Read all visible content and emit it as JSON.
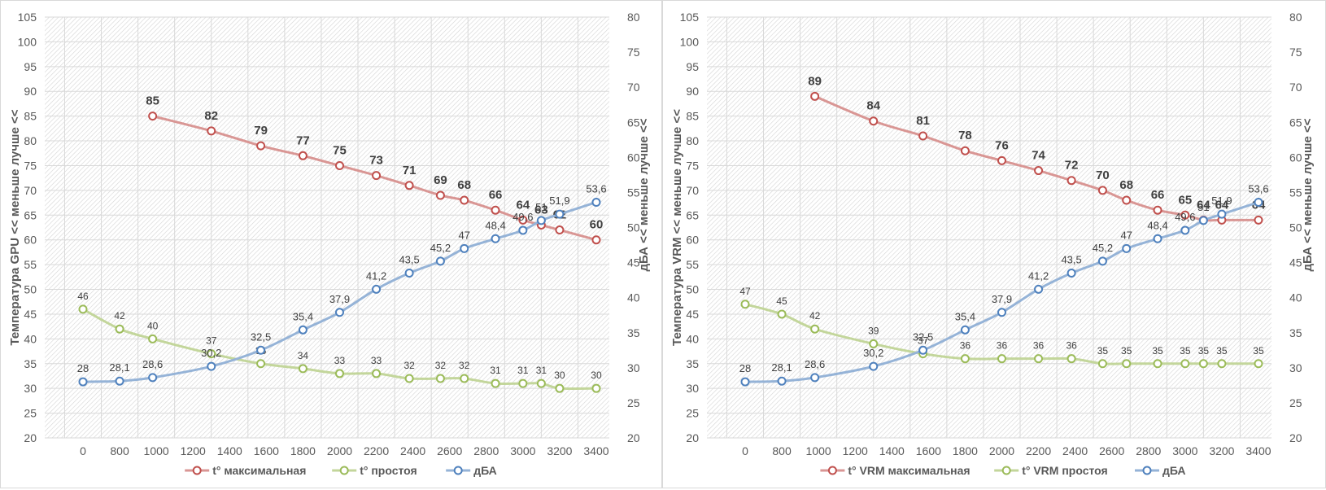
{
  "chart_data": [
    {
      "type": "line",
      "id": "gpu",
      "xlabel": "",
      "categories": [
        "0",
        "800",
        "1000",
        "1200",
        "1400",
        "1600",
        "1800",
        "2000",
        "2200",
        "2400",
        "2600",
        "2800",
        "3000",
        "3200",
        "3400"
      ],
      "ylabel": "Температура GPU << меньше лучше <<",
      "ylim": [
        20,
        105
      ],
      "yticks": [
        20,
        25,
        30,
        35,
        40,
        45,
        50,
        55,
        60,
        65,
        70,
        75,
        80,
        85,
        90,
        95,
        100,
        105
      ],
      "y2label": "дБА <<  меньше лучше <<",
      "y2lim": [
        20,
        80
      ],
      "y2ticks": [
        20,
        25,
        30,
        35,
        40,
        45,
        50,
        55,
        60,
        65,
        70,
        75,
        80
      ],
      "grid": true,
      "legend_position": "bottom",
      "series": [
        {
          "name": "t° максимальная",
          "color": "#d99694",
          "marker_color": "#c0504d",
          "axis": "primary",
          "label_style": "bold",
          "x": [
            980,
            1300,
            1570,
            1800,
            2000,
            2200,
            2380,
            2550,
            2680,
            2850,
            3000,
            3100,
            3200,
            3400
          ],
          "values": [
            85,
            82,
            79,
            77,
            75,
            73,
            71,
            69,
            68,
            66,
            64,
            63,
            62,
            60
          ],
          "labels": [
            "85",
            "82",
            "79",
            "77",
            "75",
            "73",
            "71",
            "69",
            "68",
            "66",
            "64",
            "63",
            "62",
            "60"
          ]
        },
        {
          "name": "t° простоя",
          "color": "#c3d69b",
          "marker_color": "#9bbb59",
          "axis": "primary",
          "label_style": "small",
          "x": [
            0,
            800,
            980,
            1300,
            1570,
            1800,
            2000,
            2200,
            2380,
            2550,
            2680,
            2850,
            3000,
            3100,
            3200,
            3400
          ],
          "values": [
            46,
            42,
            40,
            37,
            35,
            34,
            33,
            33,
            32,
            32,
            32,
            31,
            31,
            31,
            30,
            30
          ],
          "labels": [
            "46",
            "42",
            "40",
            "37",
            "35",
            "34",
            "33",
            "33",
            "32",
            "32",
            "32",
            "31",
            "31",
            "31",
            "30",
            "30"
          ]
        },
        {
          "name": "дБА",
          "color": "#95b3d7",
          "marker_color": "#4f81bd",
          "axis": "secondary",
          "label_style": "normal",
          "x": [
            0,
            800,
            980,
            1300,
            1570,
            1800,
            2000,
            2200,
            2380,
            2550,
            2680,
            2850,
            3000,
            3100,
            3200,
            3400
          ],
          "values": [
            28,
            28.1,
            28.6,
            30.2,
            32.5,
            35.4,
            37.9,
            41.2,
            43.5,
            45.2,
            47,
            48.4,
            49.6,
            51,
            51.9,
            53.6
          ],
          "labels": [
            "28",
            "28,1",
            "28,6",
            "30,2",
            "32,5",
            "35,4",
            "37,9",
            "41,2",
            "43,5",
            "45,2",
            "47",
            "48,4",
            "49,6",
            "51",
            "51,9",
            "53,6"
          ]
        }
      ]
    },
    {
      "type": "line",
      "id": "vrm",
      "xlabel": "",
      "categories": [
        "0",
        "800",
        "1000",
        "1200",
        "1400",
        "1600",
        "1800",
        "2000",
        "2200",
        "2400",
        "2600",
        "2800",
        "3000",
        "3200",
        "3400"
      ],
      "ylabel": "Температура VRM << меньше лучше <<",
      "ylim": [
        20,
        105
      ],
      "yticks": [
        20,
        25,
        30,
        35,
        40,
        45,
        50,
        55,
        60,
        65,
        70,
        75,
        80,
        85,
        90,
        95,
        100,
        105
      ],
      "y2label": "дБА <<  меньше лучше <<",
      "y2lim": [
        20,
        80
      ],
      "y2ticks": [
        20,
        25,
        30,
        35,
        40,
        45,
        50,
        55,
        60,
        65,
        70,
        75,
        80
      ],
      "grid": true,
      "legend_position": "bottom",
      "series": [
        {
          "name": "t° VRM максимальная",
          "color": "#d99694",
          "marker_color": "#c0504d",
          "axis": "primary",
          "label_style": "bold",
          "x": [
            980,
            1300,
            1570,
            1800,
            2000,
            2200,
            2380,
            2550,
            2680,
            2850,
            3000,
            3100,
            3200,
            3400
          ],
          "values": [
            89,
            84,
            81,
            78,
            76,
            74,
            72,
            70,
            68,
            66,
            65,
            64,
            64,
            64
          ],
          "labels": [
            "89",
            "84",
            "81",
            "78",
            "76",
            "74",
            "72",
            "70",
            "68",
            "66",
            "65",
            "64",
            "64",
            "64"
          ]
        },
        {
          "name": "t° VRM простоя",
          "color": "#c3d69b",
          "marker_color": "#9bbb59",
          "axis": "primary",
          "label_style": "small",
          "x": [
            0,
            800,
            980,
            1300,
            1570,
            1800,
            2000,
            2200,
            2380,
            2550,
            2680,
            2850,
            3000,
            3100,
            3200,
            3400
          ],
          "values": [
            47,
            45,
            42,
            39,
            37,
            36,
            36,
            36,
            36,
            35,
            35,
            35,
            35,
            35,
            35,
            35
          ],
          "labels": [
            "47",
            "45",
            "42",
            "39",
            "37",
            "36",
            "36",
            "36",
            "36",
            "35",
            "35",
            "35",
            "35",
            "35",
            "35",
            "35"
          ]
        },
        {
          "name": "дБА",
          "color": "#95b3d7",
          "marker_color": "#4f81bd",
          "axis": "secondary",
          "label_style": "normal",
          "x": [
            0,
            800,
            980,
            1300,
            1570,
            1800,
            2000,
            2200,
            2380,
            2550,
            2680,
            2850,
            3000,
            3100,
            3200,
            3400
          ],
          "values": [
            28,
            28.1,
            28.6,
            30.2,
            32.5,
            35.4,
            37.9,
            41.2,
            43.5,
            45.2,
            47,
            48.4,
            49.6,
            51,
            51.9,
            53.6
          ],
          "labels": [
            "28",
            "28,1",
            "28,6",
            "30,2",
            "32,5",
            "35,4",
            "37,9",
            "41,2",
            "43,5",
            "45,2",
            "47",
            "48,4",
            "49,6",
            "51",
            "51,9",
            "53,6"
          ]
        }
      ]
    }
  ]
}
